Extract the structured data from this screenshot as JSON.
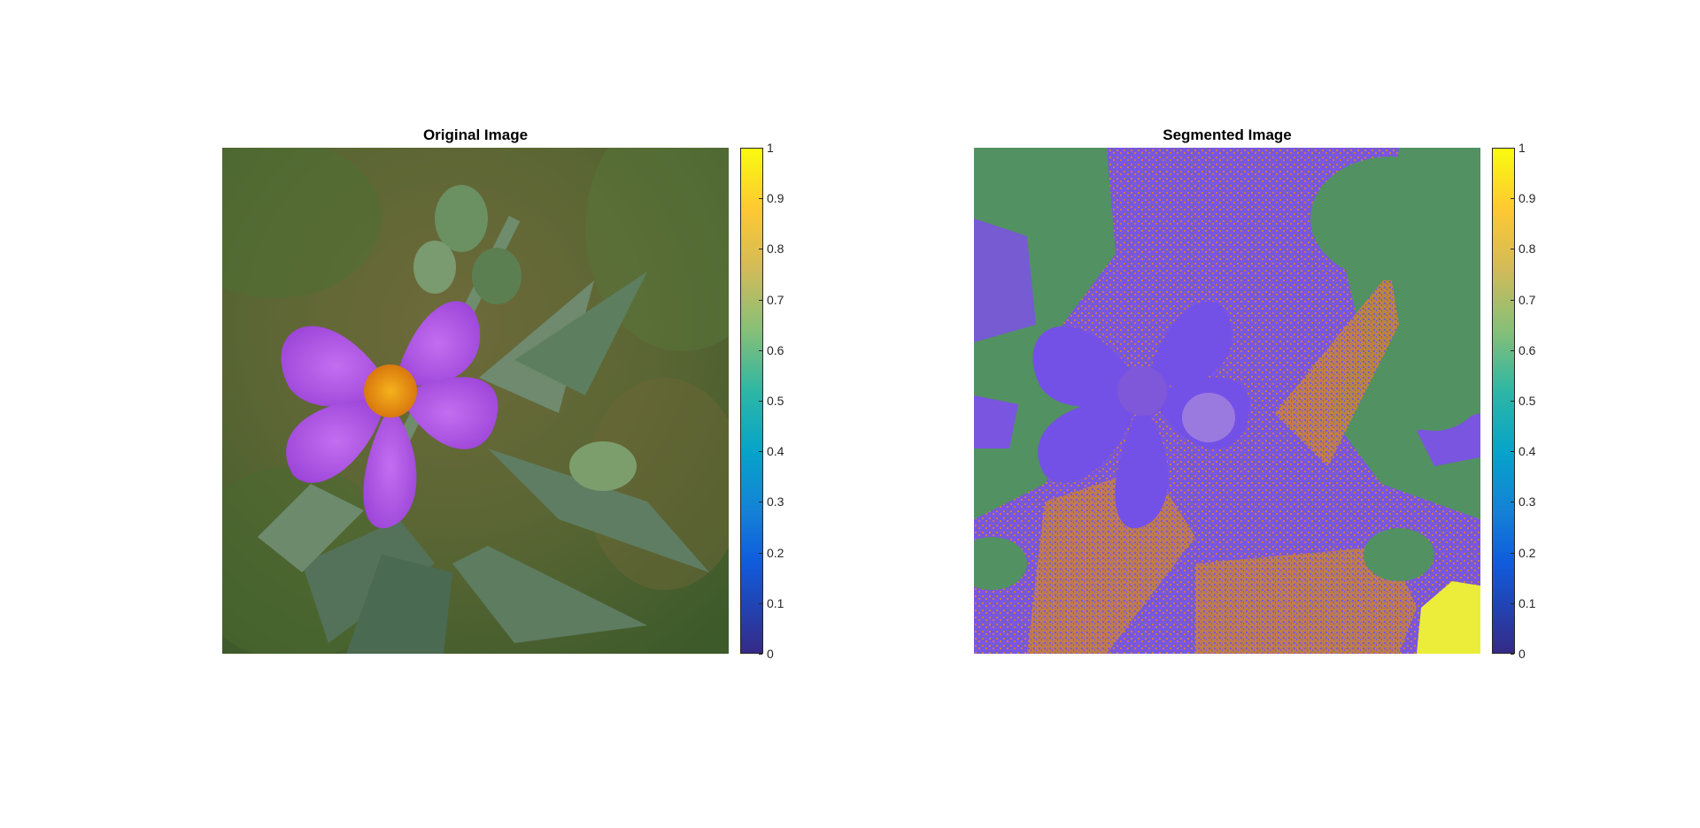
{
  "panels": [
    {
      "title": "Original Image"
    },
    {
      "title": "Segmented Image"
    }
  ],
  "colorbar": {
    "colormap": "parula",
    "ticks": [
      "0",
      "0.1",
      "0.2",
      "0.3",
      "0.4",
      "0.5",
      "0.6",
      "0.7",
      "0.8",
      "0.9",
      "1"
    ]
  },
  "colors": {
    "segment_green": "#529161",
    "segment_purple": "#7451e6",
    "segment_orange": "#c9803b",
    "segment_yellow": "#eced3a",
    "petal_magenta": "#a64fe0",
    "flower_center": "#f0a21a"
  }
}
